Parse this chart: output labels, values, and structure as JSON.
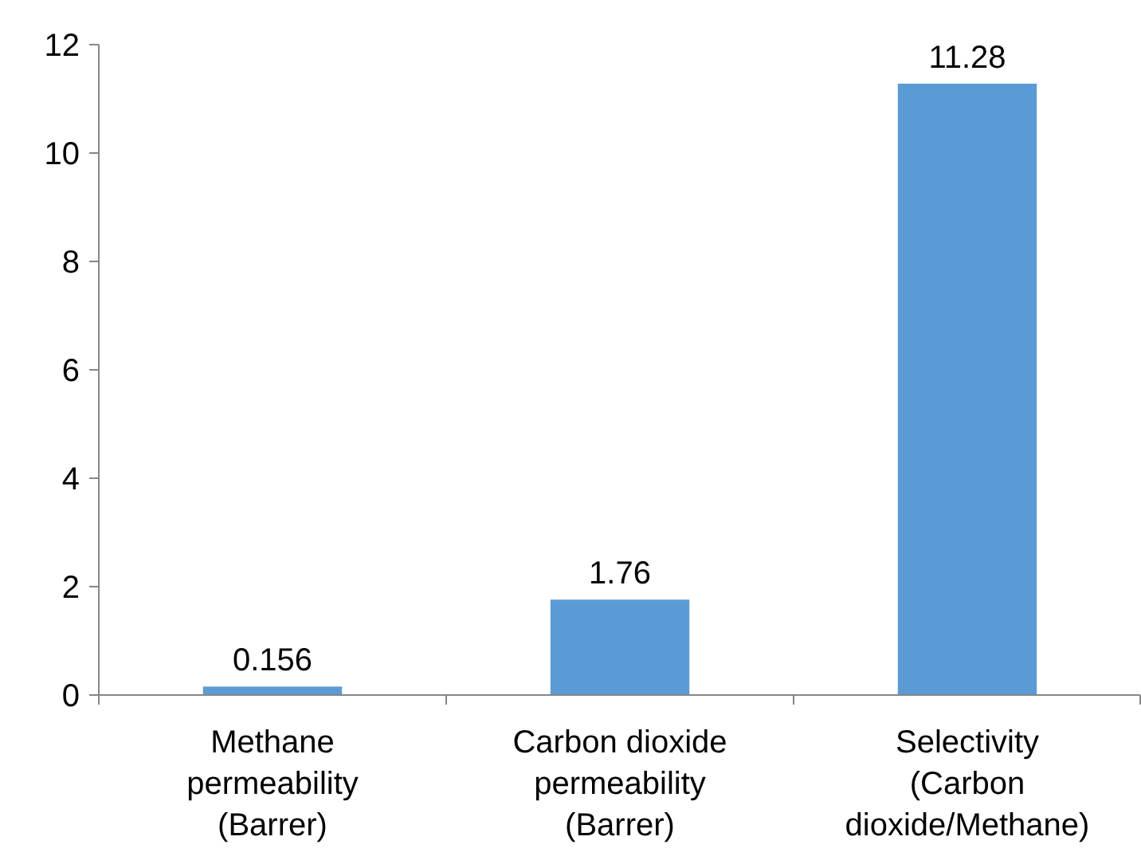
{
  "chart_data": {
    "type": "bar",
    "categories": [
      "Methane permeability (Barrer)",
      "Carbon dioxide permeability (Barrer)",
      "Selectivity (Carbon dioxide/Methane)"
    ],
    "values": [
      0.156,
      1.76,
      11.28
    ],
    "color": "#5b9bd5",
    "data_labels": true,
    "ylim": [
      0,
      12
    ],
    "yticks": [
      0,
      2,
      4,
      6,
      8,
      10,
      12
    ]
  }
}
